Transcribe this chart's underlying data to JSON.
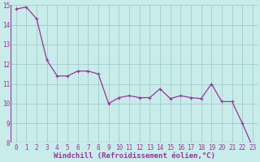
{
  "x": [
    0,
    1,
    2,
    3,
    4,
    5,
    6,
    7,
    8,
    9,
    10,
    11,
    12,
    13,
    14,
    15,
    16,
    17,
    18,
    19,
    20,
    21,
    22,
    23
  ],
  "y": [
    14.8,
    14.9,
    14.3,
    12.2,
    11.4,
    11.4,
    11.65,
    11.65,
    11.5,
    10.0,
    10.3,
    10.4,
    10.3,
    10.3,
    10.75,
    10.25,
    10.4,
    10.3,
    10.25,
    11.0,
    10.1,
    10.1,
    9.0,
    7.8
  ],
  "line_color": "#993399",
  "marker": "+",
  "marker_size": 3,
  "marker_linewidth": 0.8,
  "line_width": 0.9,
  "background_color": "#c8ecea",
  "grid_color": "#a0ccca",
  "xlabel": "Windchill (Refroidissement éolien,°C)",
  "ylim": [
    8,
    15
  ],
  "xlim": [
    -0.5,
    23.5
  ],
  "yticks": [
    8,
    9,
    10,
    11,
    12,
    13,
    14,
    15
  ],
  "xticks": [
    0,
    1,
    2,
    3,
    4,
    5,
    6,
    7,
    8,
    9,
    10,
    11,
    12,
    13,
    14,
    15,
    16,
    17,
    18,
    19,
    20,
    21,
    22,
    23
  ],
  "tick_label_size": 5.5,
  "xlabel_size": 6.5,
  "ylabel_size": 6.5
}
